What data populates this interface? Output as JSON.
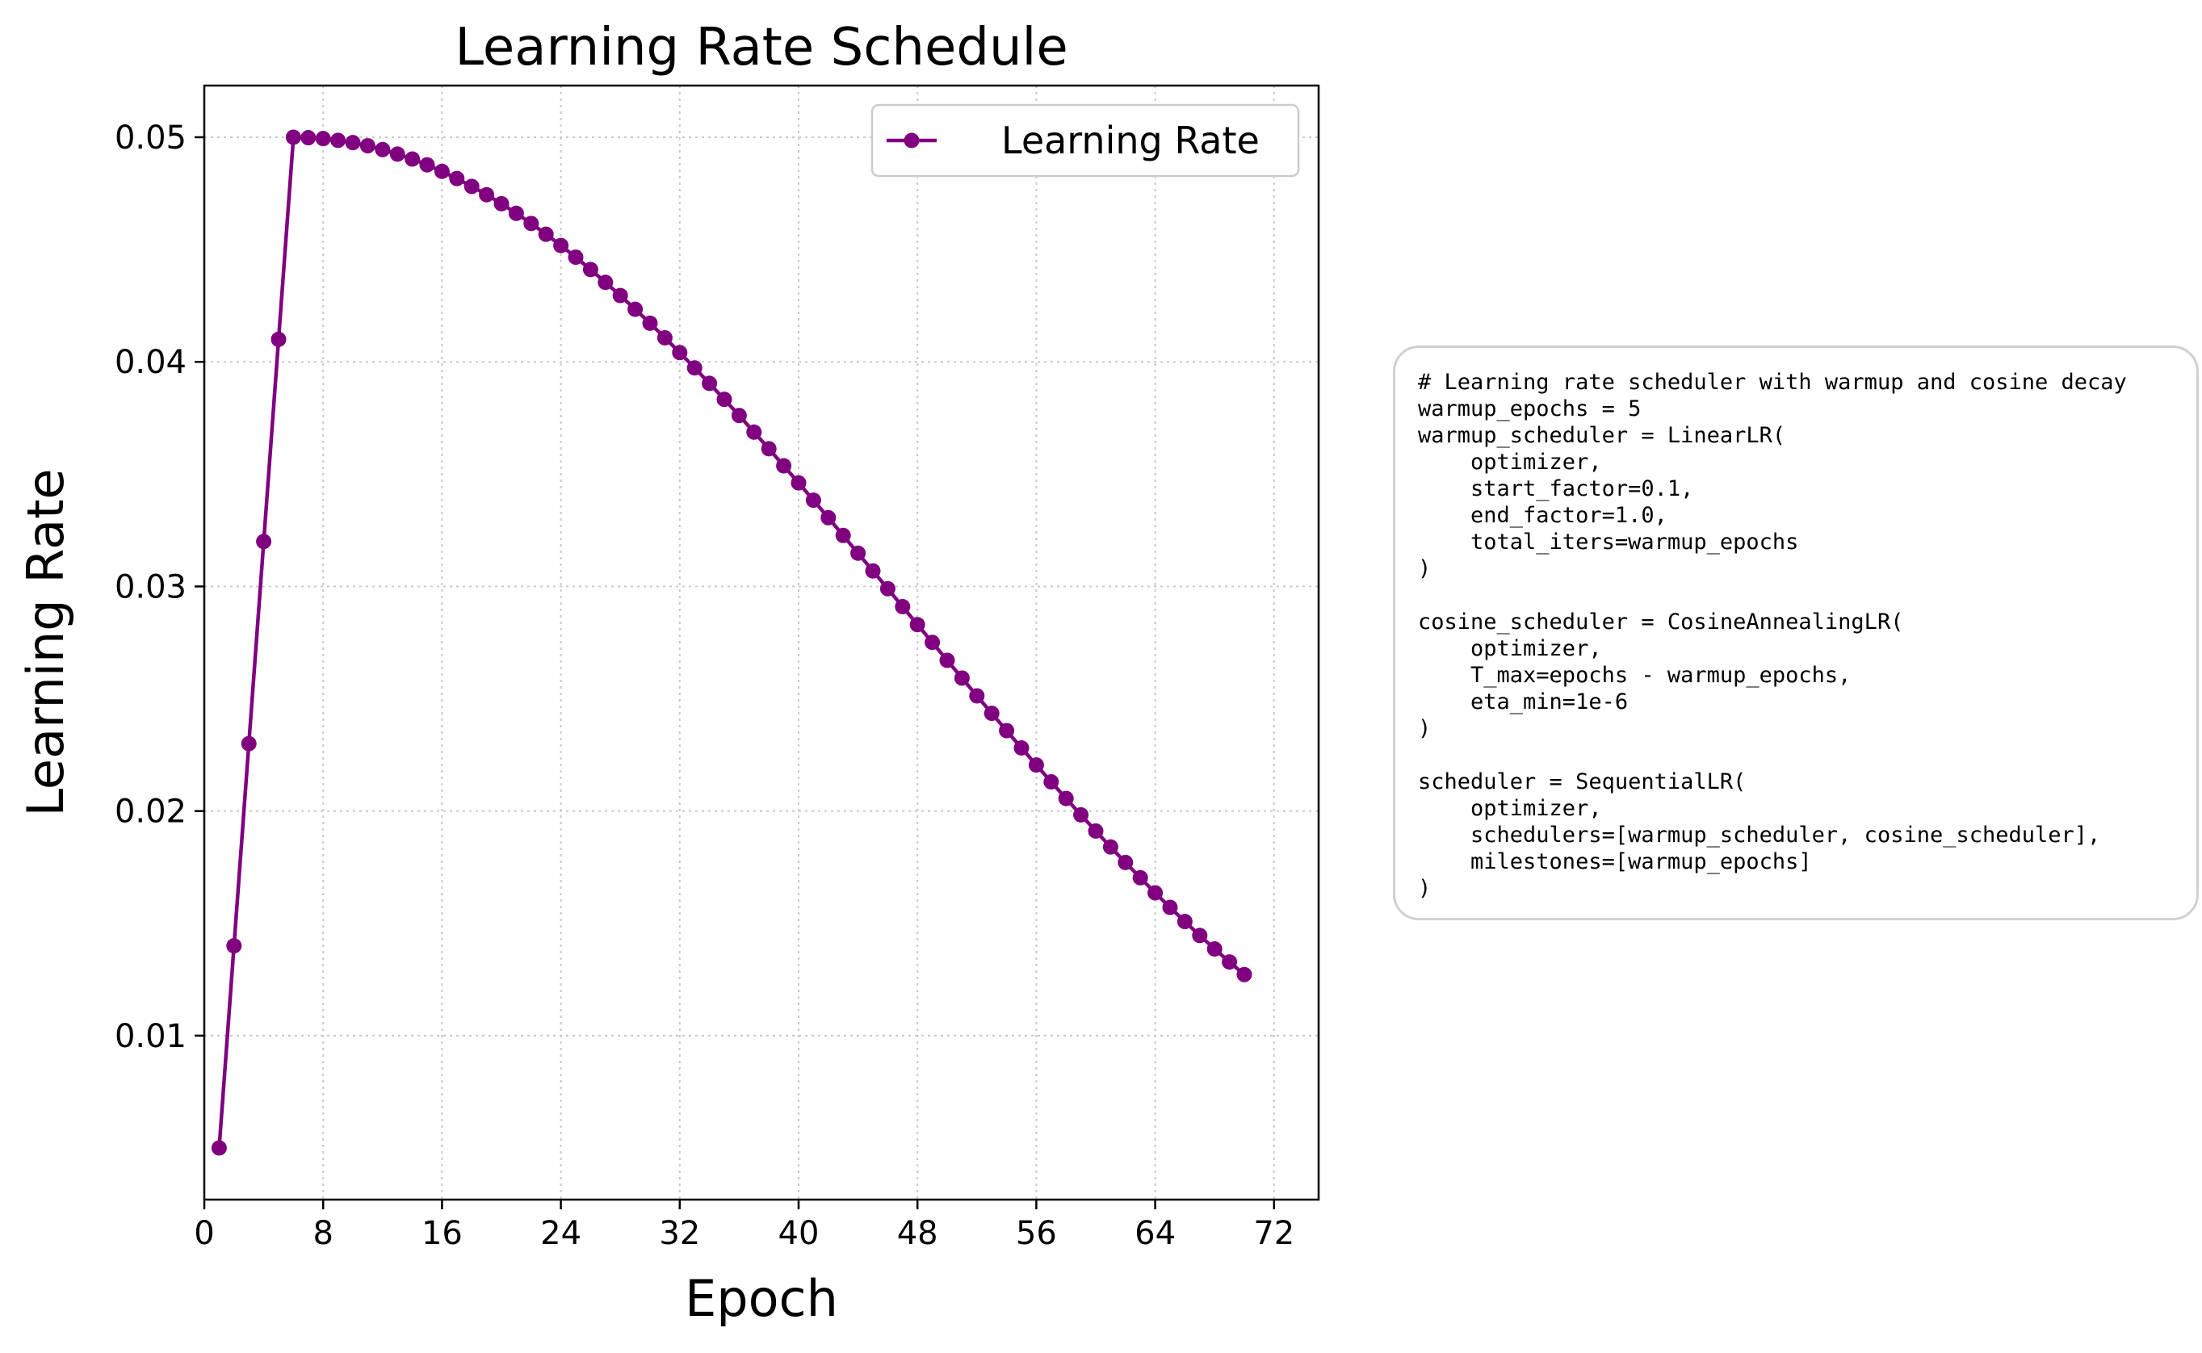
{
  "chart_data": {
    "type": "line",
    "title": "Learning Rate Schedule",
    "xlabel": "Epoch",
    "ylabel": "Learning Rate",
    "xlim": [
      0,
      75
    ],
    "ylim": [
      0.0027,
      0.0523
    ],
    "xticks": [
      0,
      8,
      16,
      24,
      32,
      40,
      48,
      56,
      64,
      72
    ],
    "xtick_labels": [
      "0",
      "8",
      "16",
      "24",
      "32",
      "40",
      "48",
      "56",
      "64",
      "72"
    ],
    "yticks": [
      0.01,
      0.02,
      0.03,
      0.04,
      0.05
    ],
    "ytick_labels": [
      "0.01",
      "0.02",
      "0.03",
      "0.04",
      "0.05"
    ],
    "grid": true,
    "legend_position": "top-right",
    "series": [
      {
        "name": "Learning Rate",
        "color": "#800080",
        "marker": "circle",
        "x": [
          1,
          2,
          3,
          4,
          5,
          6,
          7,
          8,
          9,
          10,
          11,
          12,
          13,
          14,
          15,
          16,
          17,
          18,
          19,
          20,
          21,
          22,
          23,
          24,
          25,
          26,
          27,
          28,
          29,
          30,
          31,
          32,
          33,
          34,
          35,
          36,
          37,
          38,
          39,
          40,
          41,
          42,
          43,
          44,
          45,
          46,
          47,
          48,
          49,
          50,
          51,
          52,
          53,
          54,
          55,
          56,
          57,
          58,
          59,
          60,
          61,
          62,
          63,
          64,
          65,
          66,
          67,
          68,
          69,
          70
        ],
        "values": [
          0.005,
          0.014,
          0.023,
          0.032,
          0.041,
          0.05,
          0.04998,
          0.04994,
          0.04986,
          0.04976,
          0.04962,
          0.04945,
          0.04925,
          0.04903,
          0.04877,
          0.04848,
          0.04816,
          0.04781,
          0.04744,
          0.04704,
          0.04661,
          0.04616,
          0.04568,
          0.04518,
          0.04466,
          0.04411,
          0.04354,
          0.04295,
          0.04234,
          0.04172,
          0.04107,
          0.04041,
          0.03973,
          0.03904,
          0.03833,
          0.03761,
          0.03687,
          0.03613,
          0.03537,
          0.03461,
          0.03384,
          0.03306,
          0.03227,
          0.03148,
          0.03069,
          0.0299,
          0.0291,
          0.0283,
          0.02751,
          0.02671,
          0.02592,
          0.02513,
          0.02435,
          0.02358,
          0.02281,
          0.02205,
          0.0213,
          0.02056,
          0.01983,
          0.01911,
          0.0184,
          0.01771,
          0.01703,
          0.01636,
          0.01571,
          0.01508,
          0.01446,
          0.01386,
          0.01328,
          0.01272
        ]
      }
    ]
  },
  "code_block": {
    "lines": [
      "# Learning rate scheduler with warmup and cosine decay",
      "warmup_epochs = 5",
      "warmup_scheduler = LinearLR(",
      "    optimizer,",
      "    start_factor=0.1,",
      "    end_factor=1.0,",
      "    total_iters=warmup_epochs",
      ")",
      "",
      "cosine_scheduler = CosineAnnealingLR(",
      "    optimizer,",
      "    T_max=epochs - warmup_epochs,",
      "    eta_min=1e-6",
      ")",
      "",
      "scheduler = SequentialLR(",
      "    optimizer,",
      "    schedulers=[warmup_scheduler, cosine_scheduler],",
      "    milestones=[warmup_epochs]",
      ")"
    ]
  }
}
